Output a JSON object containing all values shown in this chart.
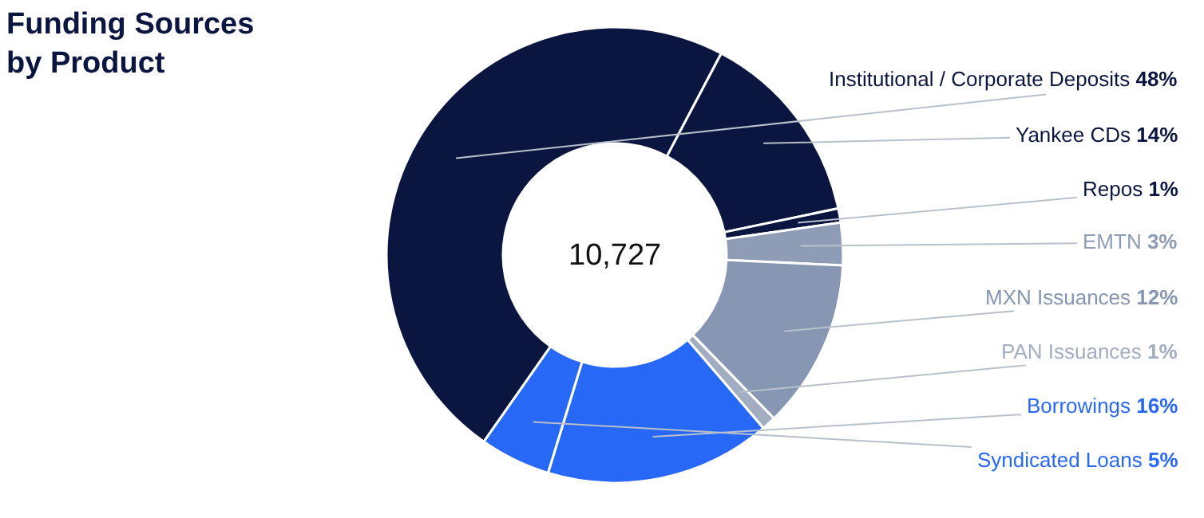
{
  "chart_data": {
    "type": "donut",
    "title": "Funding Sources\nby Product",
    "categories": [
      "Institutional / Corporate Deposits",
      "Yankee CDs",
      "Repos",
      "EMTN",
      "MXN Issuances",
      "PAN Issuances",
      "Borrowings",
      "Syndicated Loans"
    ],
    "values": [
      48,
      14,
      1,
      3,
      12,
      1,
      16,
      5
    ],
    "value_labels": [
      "48%",
      "14%",
      "1%",
      "3%",
      "12%",
      "1%",
      "16%",
      "5%"
    ],
    "colors": [
      "#0b1640",
      "#0b1640",
      "#0b1640",
      "#8e9cb6",
      "#8796b2",
      "#a3adc2",
      "#2868f6",
      "#2868f6"
    ],
    "annotations": [
      "10,727"
    ],
    "legend": false
  }
}
